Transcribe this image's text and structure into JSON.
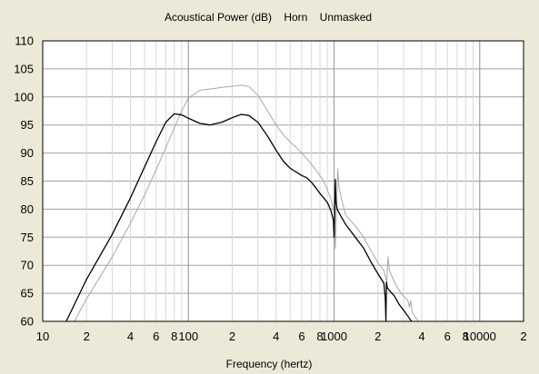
{
  "chart_data": {
    "type": "line",
    "title": "Acoustical Power (dB)    Horn    Unmasked",
    "xlabel": "Frequency (hertz)",
    "ylabel": "",
    "x_scale": "log",
    "xlim": [
      10,
      20000
    ],
    "ylim": [
      60,
      110
    ],
    "grid": true,
    "legend": "none",
    "x_tick_labels": [
      {
        "x": 10,
        "label": "10"
      },
      {
        "x": 20,
        "label": "2"
      },
      {
        "x": 40,
        "label": "4"
      },
      {
        "x": 60,
        "label": "6"
      },
      {
        "x": 80,
        "label": "8"
      },
      {
        "x": 100,
        "label": "100"
      },
      {
        "x": 200,
        "label": "2"
      },
      {
        "x": 400,
        "label": "4"
      },
      {
        "x": 600,
        "label": "6"
      },
      {
        "x": 800,
        "label": "8"
      },
      {
        "x": 1000,
        "label": "1000"
      },
      {
        "x": 2000,
        "label": "2"
      },
      {
        "x": 4000,
        "label": "4"
      },
      {
        "x": 6000,
        "label": "6"
      },
      {
        "x": 8000,
        "label": "8"
      },
      {
        "x": 10000,
        "label": "10000"
      },
      {
        "x": 20000,
        "label": "2"
      }
    ],
    "y_ticks": [
      60,
      65,
      70,
      75,
      80,
      85,
      90,
      95,
      100,
      105,
      110
    ],
    "series": [
      {
        "color": "#000000",
        "points": [
          [
            14.5,
            60
          ],
          [
            20,
            67.5
          ],
          [
            30,
            75.5
          ],
          [
            40,
            82
          ],
          [
            50,
            87.5
          ],
          [
            60,
            92
          ],
          [
            70,
            95.5
          ],
          [
            80,
            97
          ],
          [
            90,
            96.8
          ],
          [
            100,
            96.2
          ],
          [
            120,
            95.3
          ],
          [
            140,
            95.0
          ],
          [
            170,
            95.5
          ],
          [
            200,
            96.3
          ],
          [
            230,
            96.9
          ],
          [
            260,
            96.7
          ],
          [
            300,
            95.5
          ],
          [
            350,
            93
          ],
          [
            400,
            90.5
          ],
          [
            450,
            88.5
          ],
          [
            500,
            87.3
          ],
          [
            550,
            86.6
          ],
          [
            600,
            86
          ],
          [
            650,
            85.6
          ],
          [
            700,
            84.8
          ],
          [
            750,
            83.8
          ],
          [
            800,
            82.8
          ],
          [
            850,
            82
          ],
          [
            900,
            81.2
          ],
          [
            950,
            79.8
          ],
          [
            990,
            78
          ],
          [
            1000,
            75
          ],
          [
            1010,
            78.5
          ],
          [
            1020,
            85.3
          ],
          [
            1030,
            81.5
          ],
          [
            1050,
            80
          ],
          [
            1100,
            79
          ],
          [
            1200,
            77.3
          ],
          [
            1400,
            75
          ],
          [
            1600,
            73
          ],
          [
            1800,
            70.5
          ],
          [
            2000,
            68.5
          ],
          [
            2200,
            66.8
          ],
          [
            2250,
            64
          ],
          [
            2270,
            60
          ],
          [
            2290,
            67
          ],
          [
            2320,
            66
          ],
          [
            2400,
            65.5
          ],
          [
            2600,
            64.5
          ],
          [
            2800,
            63
          ],
          [
            3000,
            62
          ],
          [
            3200,
            61
          ],
          [
            3400,
            60
          ]
        ]
      },
      {
        "color": "#a8a8a8",
        "points": [
          [
            16.5,
            60
          ],
          [
            20,
            64
          ],
          [
            30,
            71.5
          ],
          [
            40,
            77.5
          ],
          [
            50,
            82.5
          ],
          [
            60,
            87
          ],
          [
            70,
            91
          ],
          [
            80,
            94.5
          ],
          [
            90,
            97.5
          ],
          [
            100,
            99.8
          ],
          [
            120,
            101.2
          ],
          [
            140,
            101.4
          ],
          [
            170,
            101.7
          ],
          [
            200,
            101.9
          ],
          [
            230,
            102.1
          ],
          [
            260,
            101.9
          ],
          [
            300,
            100.3
          ],
          [
            350,
            97.5
          ],
          [
            400,
            95
          ],
          [
            450,
            93.2
          ],
          [
            500,
            92
          ],
          [
            550,
            91
          ],
          [
            600,
            90
          ],
          [
            650,
            89
          ],
          [
            700,
            88
          ],
          [
            750,
            87
          ],
          [
            800,
            86
          ],
          [
            850,
            85
          ],
          [
            900,
            83.5
          ],
          [
            950,
            81.8
          ],
          [
            1000,
            79.5
          ],
          [
            1020,
            73
          ],
          [
            1040,
            80
          ],
          [
            1060,
            87.2
          ],
          [
            1080,
            84
          ],
          [
            1120,
            82
          ],
          [
            1200,
            79
          ],
          [
            1400,
            77
          ],
          [
            1600,
            75
          ],
          [
            1800,
            72.5
          ],
          [
            2000,
            70.5
          ],
          [
            2200,
            69
          ],
          [
            2300,
            67
          ],
          [
            2350,
            71.5
          ],
          [
            2400,
            69
          ],
          [
            2600,
            67
          ],
          [
            2800,
            65.5
          ],
          [
            3000,
            64.5
          ],
          [
            3200,
            63.8
          ],
          [
            3300,
            62.5
          ],
          [
            3350,
            63.7
          ],
          [
            3450,
            61.5
          ],
          [
            3800,
            60
          ]
        ]
      }
    ]
  }
}
